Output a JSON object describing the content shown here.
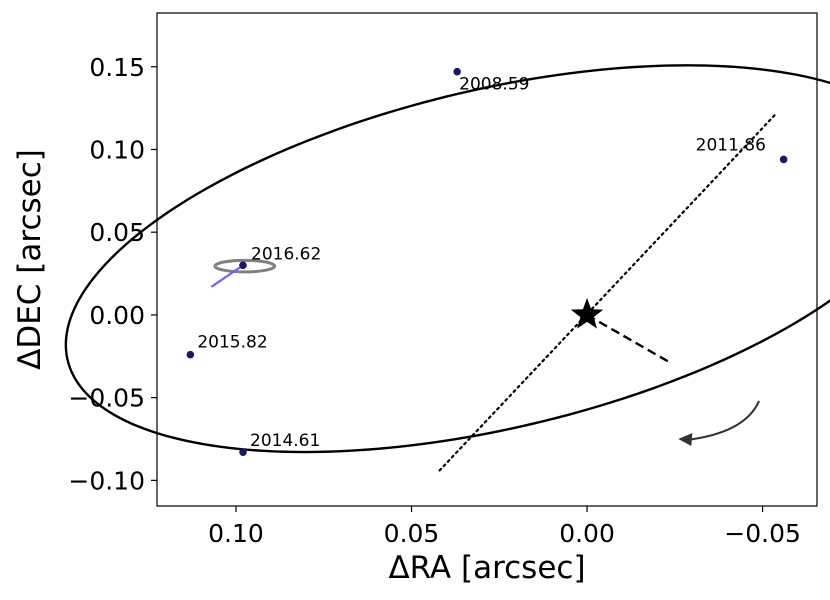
{
  "chart_data": {
    "type": "scatter",
    "xlabel": "ΔRA [arcsec]",
    "ylabel": "ΔDEC [arcsec]",
    "xlim": [
      0.1225,
      -0.0655
    ],
    "ylim": [
      -0.1155,
      0.1825
    ],
    "x_inverted": true,
    "xticks": [
      0.1,
      0.05,
      0.0,
      -0.05
    ],
    "xtick_labels": [
      "0.10",
      "0.05",
      "0.00",
      "−0.05"
    ],
    "yticks": [
      0.15,
      0.1,
      0.05,
      0.0,
      -0.05,
      -0.1
    ],
    "ytick_labels": [
      "0.15",
      "0.10",
      "0.05",
      "0.00",
      "−0.05",
      "−0.10"
    ],
    "grid": false,
    "legend": "none",
    "primary_star": {
      "x": 0.0,
      "y": 0.0,
      "marker": "star"
    },
    "orbit": {
      "center": [
        0.026,
        0.034
      ],
      "semi_major": 0.144,
      "semi_minor": 0.089,
      "major_axis_angle_deg": 42
    },
    "line_of_apsides": {
      "points": [
        [
          0.042,
          -0.094
        ],
        [
          -0.054,
          0.122
        ]
      ],
      "style": "dotted"
    },
    "periastron_line": {
      "points": [
        [
          0.0,
          0.0
        ],
        [
          -0.023,
          -0.028
        ]
      ],
      "style": "dashed"
    },
    "epochs": [
      {
        "label": "2008.59",
        "x": 0.037,
        "y": 0.147
      },
      {
        "label": "2011.86",
        "x": -0.056,
        "y": 0.094
      },
      {
        "label": "2014.61",
        "x": 0.098,
        "y": -0.083
      },
      {
        "label": "2015.82",
        "x": 0.113,
        "y": -0.024
      },
      {
        "label": "2016.62",
        "x": 0.098,
        "y": 0.03
      }
    ],
    "error_ellipse": {
      "center": [
        0.0975,
        0.0295
      ],
      "rx": 0.0085,
      "ry": 0.0035
    },
    "residual_line": {
      "from": [
        0.098,
        0.03
      ],
      "to": [
        0.107,
        0.017
      ]
    },
    "motion_arrow": {
      "from": [
        -0.049,
        -0.052
      ],
      "to": [
        -0.026,
        -0.075
      ]
    },
    "colors": {
      "orbit": "#000000",
      "points": "#1a1a5e",
      "error_ellipse": "#808080",
      "residual": "#6a6af0",
      "arrow": "#333333"
    }
  }
}
